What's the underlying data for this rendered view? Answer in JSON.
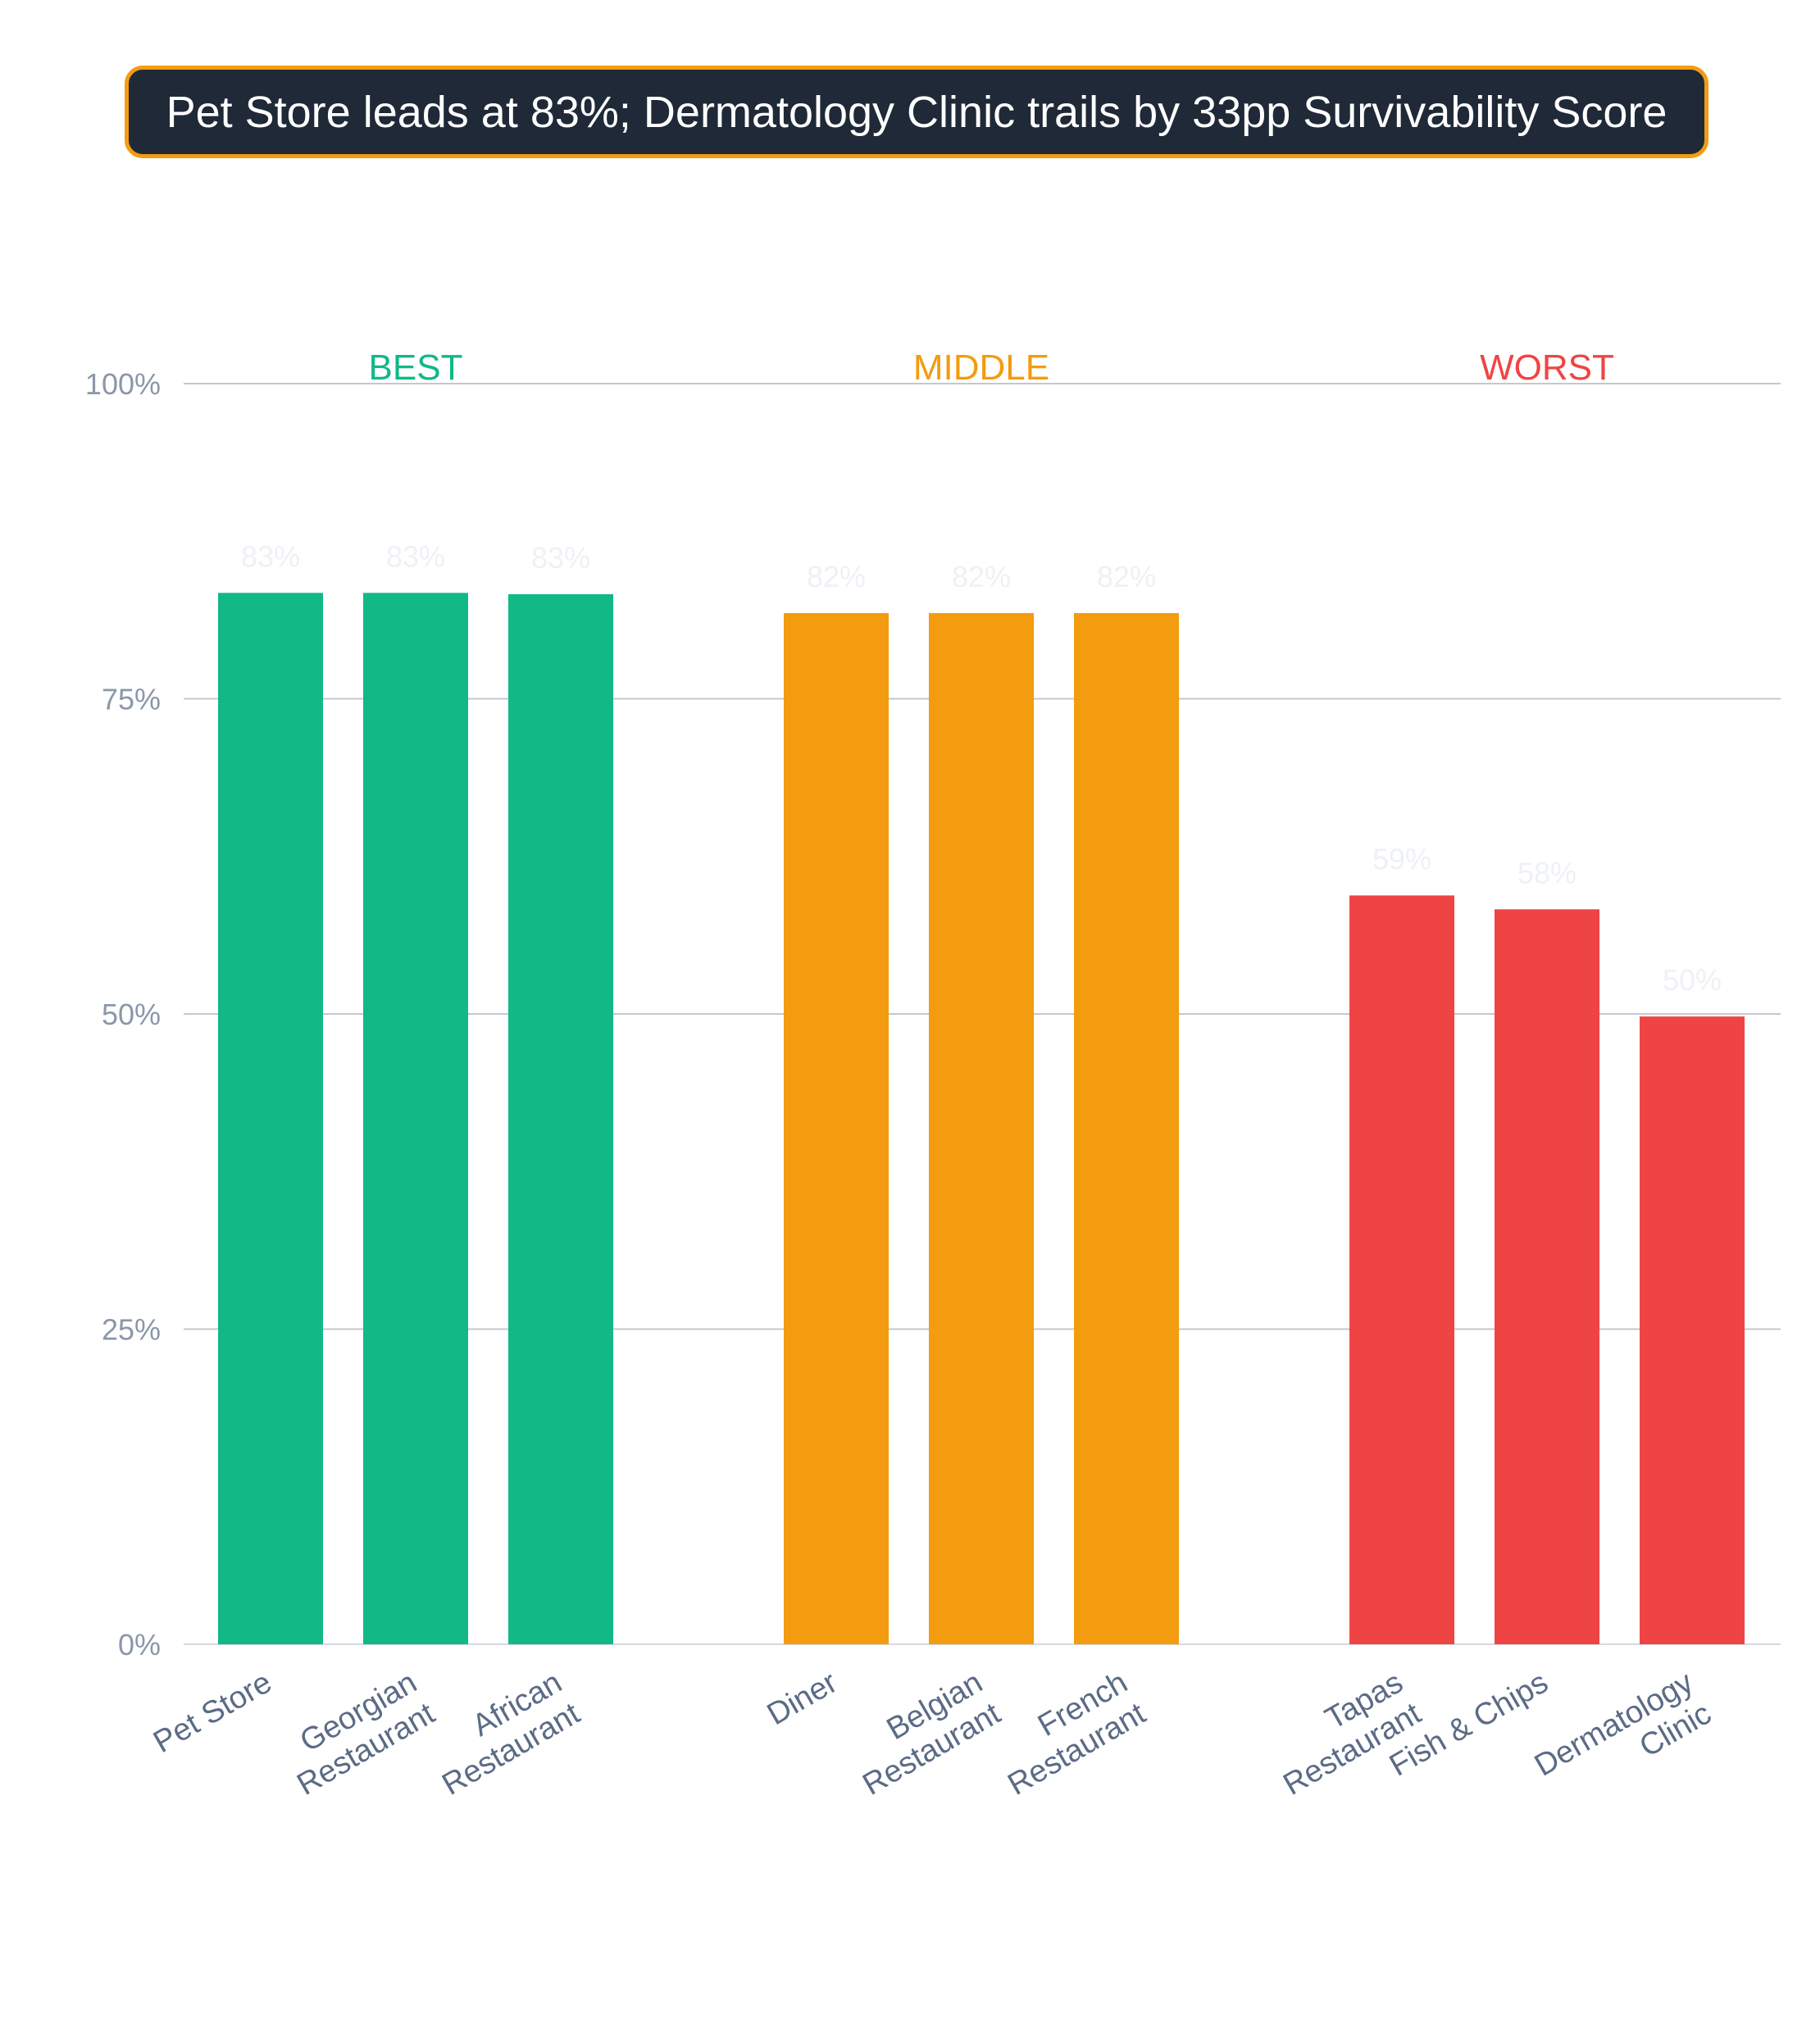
{
  "title": "Pet Store leads at 83%; Dermatology Clinic trails by 33pp Survivability Score",
  "chart_data": {
    "type": "bar",
    "ylim": [
      0,
      100
    ],
    "yticks": [
      "0%",
      "25%",
      "50%",
      "75%",
      "100%"
    ],
    "grid": true,
    "groups": [
      {
        "label": "BEST",
        "color": "#12b886",
        "bars": [
          {
            "category": [
              "Pet Store"
            ],
            "value": 83.4,
            "label": "83%"
          },
          {
            "category": [
              "Georgian",
              "Restaurant"
            ],
            "value": 83.4,
            "label": "83%"
          },
          {
            "category": [
              "African",
              "Restaurant"
            ],
            "value": 83.3,
            "label": "83%"
          }
        ]
      },
      {
        "label": "MIDDLE",
        "color": "#f39c0f",
        "bars": [
          {
            "category": [
              "Diner"
            ],
            "value": 81.8,
            "label": "82%"
          },
          {
            "category": [
              "Belgian",
              "Restaurant"
            ],
            "value": 81.8,
            "label": "82%"
          },
          {
            "category": [
              "French",
              "Restaurant"
            ],
            "value": 81.8,
            "label": "82%"
          }
        ]
      },
      {
        "label": "WORST",
        "color": "#ef4444",
        "bars": [
          {
            "category": [
              "Tapas",
              "Restaurant"
            ],
            "value": 59.4,
            "label": "59%"
          },
          {
            "category": [
              "Fish & Chips"
            ],
            "value": 58.3,
            "label": "58%"
          },
          {
            "category": [
              "Dermatology",
              "Clinic"
            ],
            "value": 49.8,
            "label": "50%"
          }
        ]
      }
    ]
  }
}
